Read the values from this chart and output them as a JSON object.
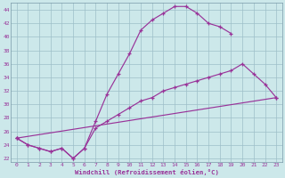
{
  "background_color": "#cce8ea",
  "line_color": "#993399",
  "grid_color": "#9dbfc8",
  "xlabel": "Windchill (Refroidissement éolien,°C)",
  "xlim_min": -0.5,
  "xlim_max": 23.5,
  "ylim_min": 21.5,
  "ylim_max": 45.0,
  "xticks": [
    0,
    1,
    2,
    3,
    4,
    5,
    6,
    7,
    8,
    9,
    10,
    11,
    12,
    13,
    14,
    15,
    16,
    17,
    18,
    19,
    20,
    21,
    22,
    23
  ],
  "yticks": [
    22,
    24,
    26,
    28,
    30,
    32,
    34,
    36,
    38,
    40,
    42,
    44
  ],
  "curve1_x": [
    0,
    1,
    2,
    3,
    4,
    5,
    6,
    7,
    8,
    9,
    10,
    11,
    12,
    13,
    14,
    15,
    16,
    17,
    18,
    19
  ],
  "curve1_y": [
    25.0,
    24.0,
    23.5,
    23.0,
    23.5,
    22.0,
    23.5,
    27.5,
    31.5,
    34.5,
    37.5,
    41.0,
    42.5,
    43.5,
    44.5,
    44.5,
    43.5,
    42.0,
    41.5,
    40.5
  ],
  "curve2_x": [
    0,
    1,
    2,
    3,
    4,
    5,
    6,
    7,
    8,
    9,
    10,
    11,
    12,
    13,
    14,
    15,
    16,
    17,
    18,
    19,
    20,
    21,
    22,
    23
  ],
  "curve2_y": [
    25.0,
    24.0,
    23.5,
    23.0,
    23.5,
    22.0,
    23.5,
    26.5,
    27.5,
    28.5,
    29.5,
    30.5,
    31.0,
    32.0,
    32.5,
    33.0,
    33.5,
    34.0,
    34.5,
    35.0,
    36.0,
    34.5,
    33.0,
    31.0
  ],
  "curve3_x": [
    0,
    23
  ],
  "curve3_y": [
    25.0,
    31.0
  ]
}
